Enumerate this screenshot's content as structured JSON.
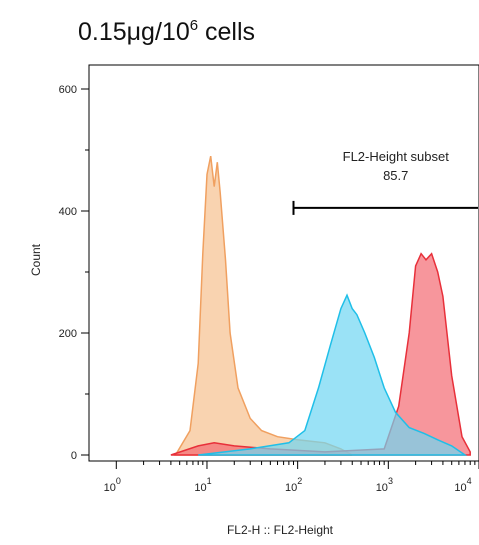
{
  "title": {
    "main": "0.15μg/10",
    "superscript": "6",
    "suffix": " cells"
  },
  "chart_data": {
    "type": "area",
    "xlabel": "FL2-H :: FL2-Height",
    "ylabel": "Count",
    "xscale": "log",
    "xlim": [
      0.5,
      10000
    ],
    "ylim": [
      0,
      620
    ],
    "y_ticks": [
      {
        "value": 0,
        "label": "0"
      },
      {
        "value": 200,
        "label": "200"
      },
      {
        "value": 400,
        "label": "400"
      },
      {
        "value": 600,
        "label": "600"
      }
    ],
    "x_ticks": [
      {
        "value": 1,
        "base": "10",
        "exp": "0"
      },
      {
        "value": 10,
        "base": "10",
        "exp": "1"
      },
      {
        "value": 100,
        "base": "10",
        "exp": "2"
      },
      {
        "value": 1000,
        "base": "10",
        "exp": "3"
      },
      {
        "value": 10000,
        "base": "10",
        "exp": "4"
      }
    ],
    "series": [
      {
        "color": "#f0a060",
        "fill": "#f6c08e",
        "x": [
          4.5,
          6.5,
          8,
          9,
          10,
          11,
          12,
          13,
          14,
          16,
          18,
          22,
          30,
          40,
          60,
          100,
          200,
          300,
          400
        ],
        "y": [
          0,
          40,
          150,
          330,
          460,
          490,
          440,
          480,
          430,
          320,
          200,
          110,
          60,
          40,
          30,
          25,
          20,
          10,
          0
        ]
      },
      {
        "color": "#e8303a",
        "fill": "#f36a72",
        "x": [
          4,
          8,
          12,
          20,
          50,
          200,
          900,
          1300,
          1700,
          2000,
          2300,
          2600,
          3000,
          3500,
          4000,
          5000,
          6500,
          8000
        ],
        "y": [
          0,
          15,
          20,
          15,
          10,
          5,
          10,
          80,
          200,
          310,
          330,
          320,
          330,
          300,
          260,
          130,
          30,
          5
        ]
      },
      {
        "color": "#1fbfe8",
        "fill": "#6fd6f2",
        "x": [
          8,
          30,
          80,
          120,
          170,
          230,
          300,
          350,
          400,
          450,
          550,
          700,
          900,
          1200,
          1700,
          2500,
          3500,
          5000,
          7000
        ],
        "y": [
          0,
          10,
          20,
          40,
          110,
          180,
          240,
          262,
          240,
          230,
          200,
          160,
          110,
          70,
          45,
          35,
          25,
          15,
          0
        ]
      }
    ],
    "annotations": [
      {
        "type": "gate",
        "label": "FL2-Height subset",
        "value": "85.7",
        "x_start": 90,
        "x_end": 10000,
        "y": 410
      }
    ]
  }
}
